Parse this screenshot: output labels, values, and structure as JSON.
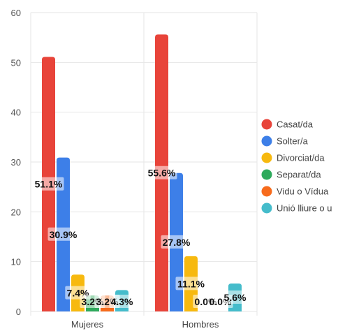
{
  "chart_data": {
    "type": "bar",
    "categories": [
      "Mujeres",
      "Hombres"
    ],
    "series": [
      {
        "name": "Casat/da",
        "values": [
          51.1,
          55.6
        ],
        "labels": [
          "51.1%",
          "55.6%"
        ],
        "color": "#e8443a"
      },
      {
        "name": "Solter/a",
        "values": [
          30.9,
          27.8
        ],
        "labels": [
          "30.9%",
          "27.8%"
        ],
        "color": "#3d7fe8"
      },
      {
        "name": "Divorciat/da",
        "values": [
          7.4,
          11.1
        ],
        "labels": [
          "7.4%",
          "11.1%"
        ],
        "color": "#f7b90f"
      },
      {
        "name": "Separat/da",
        "values": [
          3.2,
          0.0
        ],
        "labels": [
          "3.2%",
          "0.0%"
        ],
        "color": "#2eaa5c"
      },
      {
        "name": "Vidu o Vídua",
        "values": [
          3.2,
          0.0
        ],
        "labels": [
          "3.2%",
          "0.0%"
        ],
        "color": "#f76b1c"
      },
      {
        "name": "Unió lliure o u",
        "values": [
          4.3,
          5.6
        ],
        "labels": [
          "4.3%",
          "5.6%"
        ],
        "color": "#45bccb"
      }
    ],
    "ylim": [
      0,
      60
    ],
    "yticks": [
      0,
      10,
      20,
      30,
      40,
      50,
      60
    ],
    "grid": true,
    "legend": "right",
    "title": "",
    "xlabel": "",
    "ylabel": ""
  }
}
